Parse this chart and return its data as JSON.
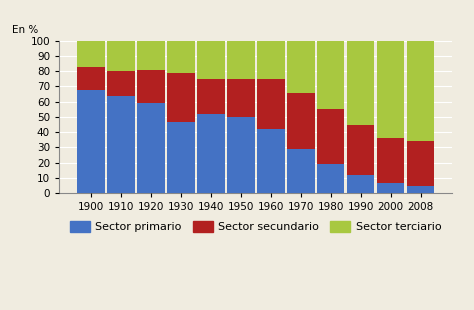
{
  "years": [
    "1900",
    "1910",
    "1920",
    "1930",
    "1940",
    "1950",
    "1960",
    "1970",
    "1980",
    "1990",
    "2000",
    "2008"
  ],
  "primario": [
    68,
    64,
    59,
    47,
    52,
    50,
    42,
    29,
    19,
    12,
    7,
    5
  ],
  "secundario": [
    15,
    16,
    22,
    32,
    23,
    25,
    33,
    37,
    36,
    33,
    29,
    29
  ],
  "terciario": [
    17,
    20,
    19,
    21,
    25,
    25,
    25,
    34,
    45,
    55,
    64,
    66
  ],
  "color_primario": "#4472c4",
  "color_secundario": "#b22020",
  "color_terciario": "#a8c840",
  "bg_color": "#f0ece0",
  "grid_color": "#ffffff",
  "ylabel": "En %",
  "ylim": [
    0,
    100
  ],
  "bar_width": 0.92,
  "legend_labels": [
    "Sector primario",
    "Sector secundario",
    "Sector terciario"
  ],
  "tick_fontsize": 7.5,
  "legend_fontsize": 8
}
